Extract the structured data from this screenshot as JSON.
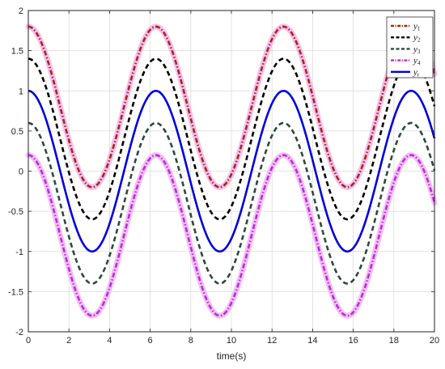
{
  "chart_data": {
    "type": "line",
    "title": "",
    "xlabel": "time(s)",
    "ylabel": "",
    "xlim": [
      0,
      20
    ],
    "ylim": [
      -2,
      2
    ],
    "xticks": [
      0,
      2,
      4,
      6,
      8,
      10,
      12,
      14,
      16,
      18,
      20
    ],
    "yticks": [
      -2,
      -1.5,
      -1,
      -0.5,
      0,
      0.5,
      1,
      1.5,
      2
    ],
    "grid": true,
    "legend_position": "top-right",
    "series": [
      {
        "name": "y1",
        "label_base": "y",
        "label_sub": "1",
        "function": "cos(t) + 0.8",
        "color": "#a52a0a",
        "style": "dashdot",
        "halo": true
      },
      {
        "name": "y2",
        "label_base": "y",
        "label_sub": "2",
        "function": "cos(t) + 0.4",
        "color": "#000000",
        "style": "dashed",
        "halo": false
      },
      {
        "name": "y3",
        "label_base": "y",
        "label_sub": "3",
        "function": "cos(t) - 0.4",
        "color": "#2e4a3a",
        "style": "dashed",
        "halo": false
      },
      {
        "name": "y4",
        "label_base": "y",
        "label_sub": "4",
        "function": "cos(t) - 0.8",
        "color": "#b030e0",
        "style": "dashdot",
        "halo": true
      },
      {
        "name": "yr",
        "label_base": "y",
        "label_sub": "r",
        "function": "cos(t)",
        "color": "#0000e0",
        "style": "solid",
        "halo": false
      }
    ]
  }
}
